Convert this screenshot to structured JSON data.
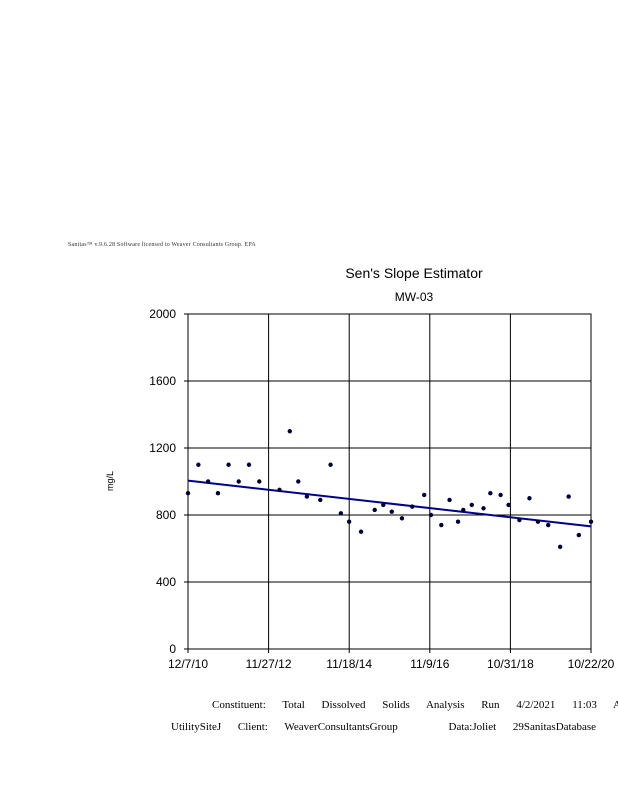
{
  "license_text": "Sanitas™ v.9.6.28 Software licensed to Weaver Consultants Group. EPA",
  "chart_data": {
    "type": "scatter",
    "title": "Sen's Slope Estimator",
    "subtitle": "MW-03",
    "xlabel": "",
    "ylabel": "mg/L",
    "ylim": [
      0,
      2000
    ],
    "y_ticks": [
      "0",
      "400",
      "800",
      "1200",
      "1600",
      "2000"
    ],
    "xlim": [
      "2010-12-07",
      "2020-10-22"
    ],
    "x_ticks": [
      "12/7/10",
      "11/27/12",
      "11/18/14",
      "11/9/16",
      "10/31/18",
      "10/22/20"
    ],
    "grid": true,
    "series": [
      {
        "marker_color": "#000033",
        "points": [
          {
            "x": "2010-12-07",
            "y": 930
          },
          {
            "x": "2011-03-10",
            "y": 1100
          },
          {
            "x": "2011-06-05",
            "y": 1000
          },
          {
            "x": "2011-09-01",
            "y": 930
          },
          {
            "x": "2011-12-05",
            "y": 1100
          },
          {
            "x": "2012-03-05",
            "y": 1000
          },
          {
            "x": "2012-06-05",
            "y": 1100
          },
          {
            "x": "2012-09-05",
            "y": 1000
          },
          {
            "x": "2013-03-05",
            "y": 950
          },
          {
            "x": "2013-06-05",
            "y": 1300
          },
          {
            "x": "2013-08-20",
            "y": 1000
          },
          {
            "x": "2013-11-05",
            "y": 910
          },
          {
            "x": "2014-03-05",
            "y": 890
          },
          {
            "x": "2014-06-05",
            "y": 1100
          },
          {
            "x": "2014-09-05",
            "y": 810
          },
          {
            "x": "2014-11-18",
            "y": 760
          },
          {
            "x": "2015-03-05",
            "y": 700
          },
          {
            "x": "2015-07-05",
            "y": 830
          },
          {
            "x": "2015-09-20",
            "y": 860
          },
          {
            "x": "2015-12-05",
            "y": 820
          },
          {
            "x": "2016-03-05",
            "y": 780
          },
          {
            "x": "2016-06-05",
            "y": 850
          },
          {
            "x": "2016-09-20",
            "y": 920
          },
          {
            "x": "2016-11-20",
            "y": 800
          },
          {
            "x": "2017-02-20",
            "y": 740
          },
          {
            "x": "2017-05-05",
            "y": 890
          },
          {
            "x": "2017-07-20",
            "y": 760
          },
          {
            "x": "2017-09-05",
            "y": 830
          },
          {
            "x": "2017-11-20",
            "y": 860
          },
          {
            "x": "2018-03-05",
            "y": 840
          },
          {
            "x": "2018-05-05",
            "y": 930
          },
          {
            "x": "2018-08-05",
            "y": 920
          },
          {
            "x": "2018-10-15",
            "y": 860
          },
          {
            "x": "2019-01-20",
            "y": 770
          },
          {
            "x": "2019-04-20",
            "y": 900
          },
          {
            "x": "2019-07-05",
            "y": 760
          },
          {
            "x": "2019-10-05",
            "y": 740
          },
          {
            "x": "2020-01-20",
            "y": 610
          },
          {
            "x": "2020-04-05",
            "y": 910
          },
          {
            "x": "2020-07-05",
            "y": 680
          },
          {
            "x": "2020-10-22",
            "y": 760
          }
        ]
      }
    ],
    "trend_line": {
      "color": "#00008B",
      "start": {
        "x": "2010-12-07",
        "y": 1005
      },
      "end": {
        "x": "2020-10-22",
        "y": 732
      }
    }
  },
  "footer": {
    "line1": [
      "Constituent:",
      "Total",
      "Dissolved",
      "Solids",
      "Analysis",
      "Run",
      "4/2/2021",
      "11:03",
      "AM"
    ],
    "line2": [
      "UtilitySiteJ",
      "Client:",
      "WeaverConsultantsGroup",
      "Data:Joliet",
      "29SanitasDatabase"
    ]
  }
}
